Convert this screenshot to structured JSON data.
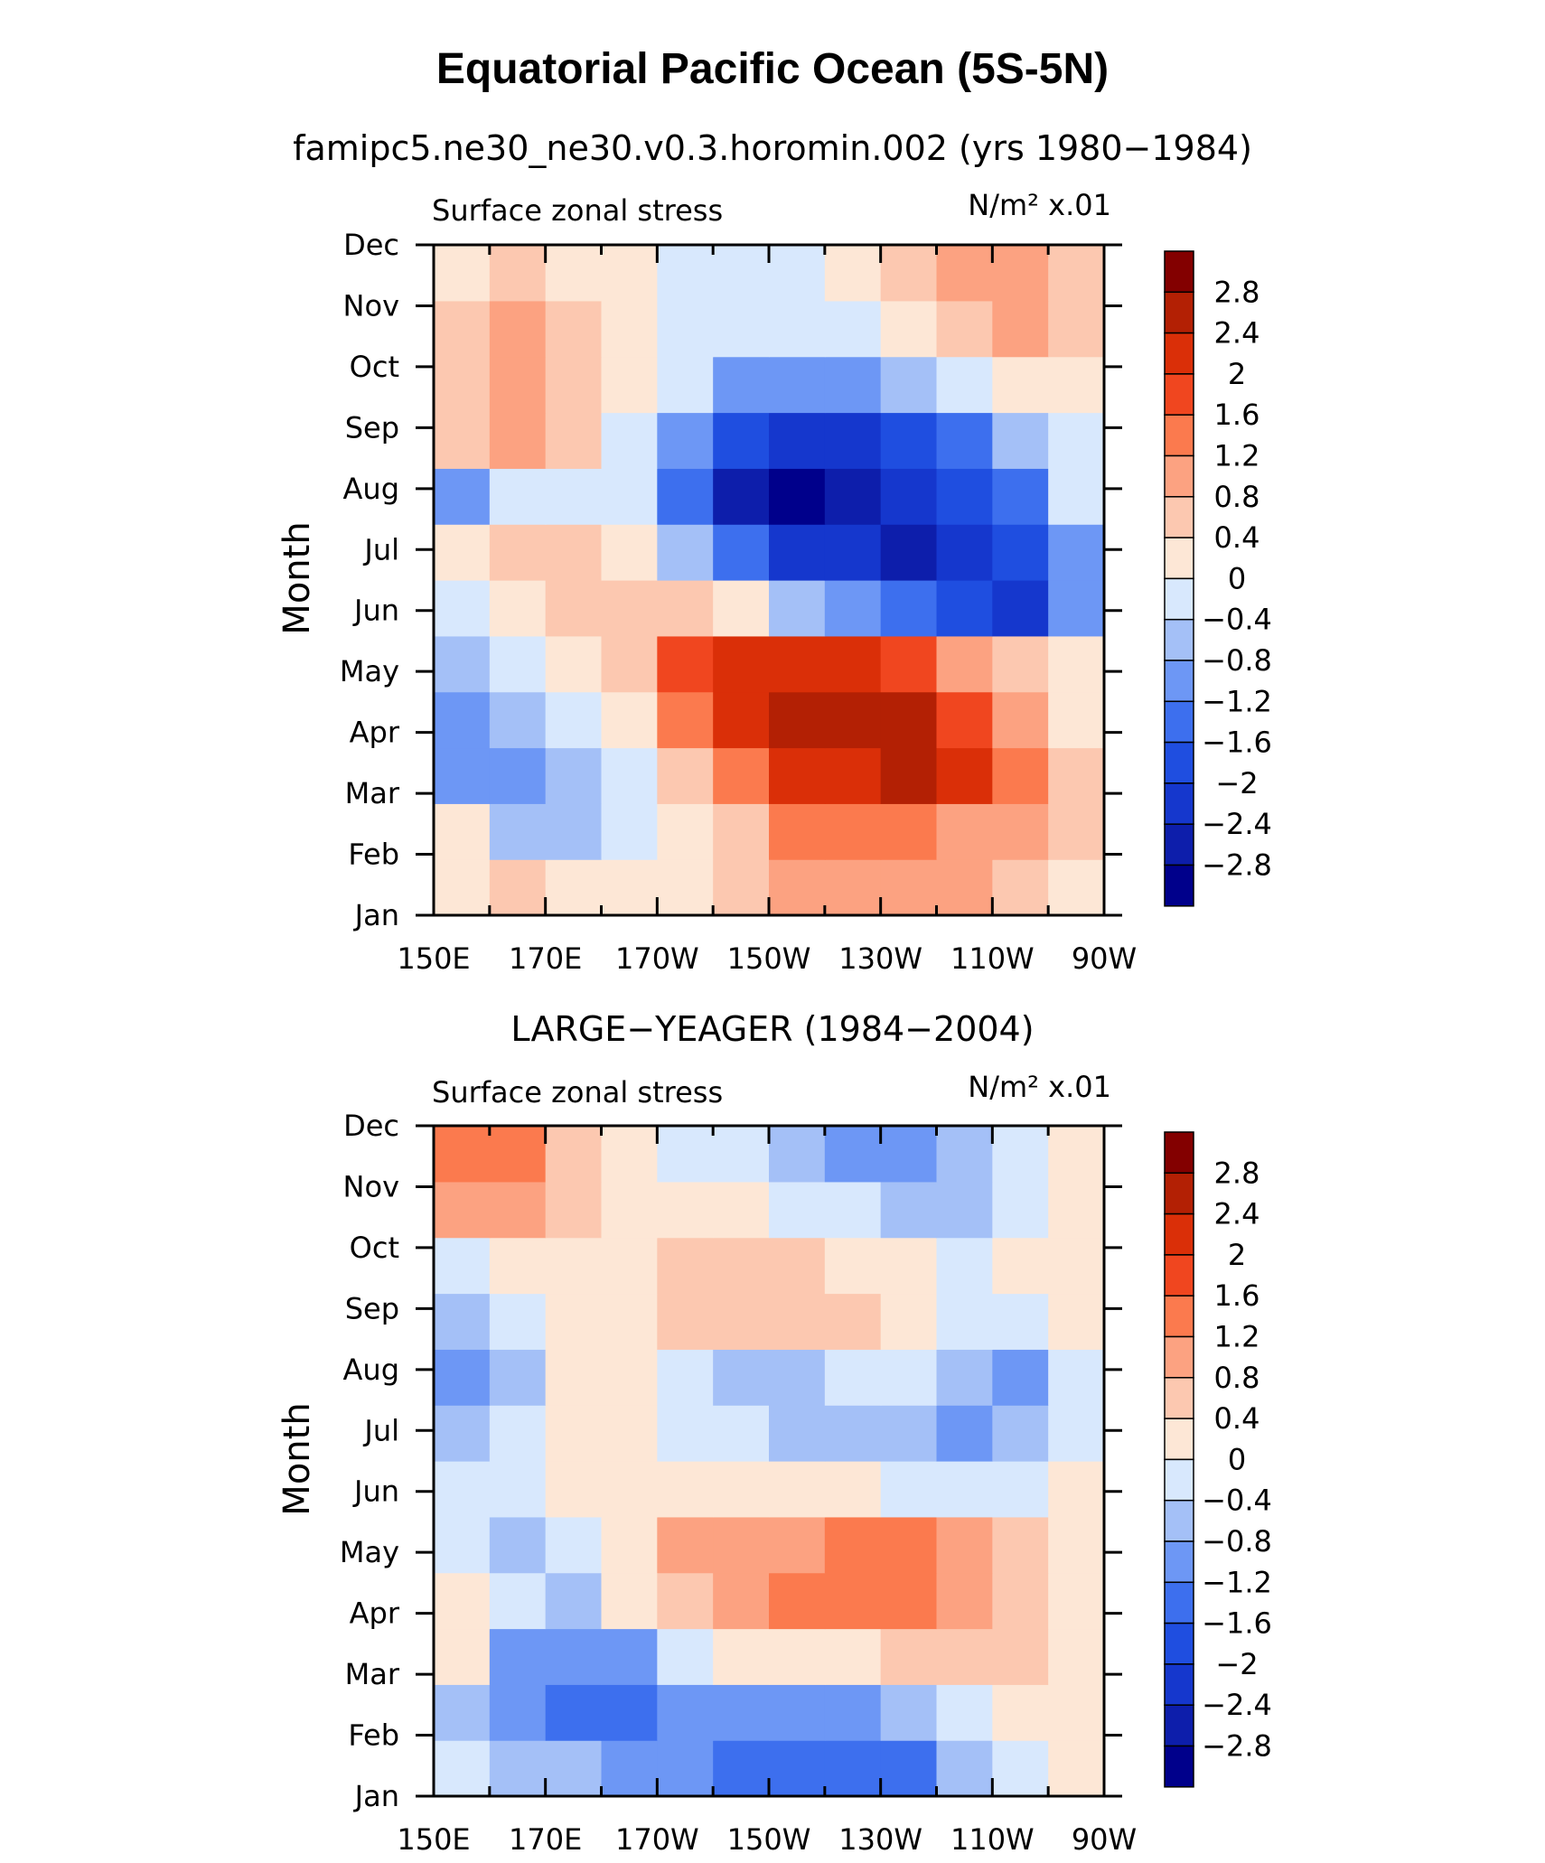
{
  "figure_title": "Equatorial Pacific Ocean (5S-5N)",
  "chart_data": [
    {
      "type": "heatmap",
      "title": "famipc5.ne30_ne30.v0.3.horomin.002 (yrs 1980−1984)",
      "left_label": "Surface zonal stress",
      "units": "N/m² x.01",
      "xlabel": "",
      "ylabel": "Month",
      "x_ticks": [
        "150E",
        "170E",
        "170W",
        "150W",
        "130W",
        "110W",
        "90W"
      ],
      "y_ticks": [
        "Jan",
        "Feb",
        "Mar",
        "Apr",
        "May",
        "Jun",
        "Jul",
        "Aug",
        "Sep",
        "Oct",
        "Nov",
        "Dec"
      ],
      "colorbar_levels": [
        "2.8",
        "2.4",
        "2",
        "1.6",
        "1.2",
        "0.8",
        "0.4",
        "0",
        "−0.4",
        "−0.8",
        "−1.2",
        "−1.6",
        "−2",
        "−2.4",
        "−2.8"
      ],
      "z": [
        [
          0.2,
          0.4,
          0.2,
          0.1,
          0.1,
          0.4,
          0.8,
          1.0,
          0.9,
          0.8,
          0.7,
          0.3
        ],
        [
          0.0,
          -0.5,
          -0.6,
          -0.3,
          0.3,
          0.7,
          1.3,
          1.4,
          1.3,
          1.1,
          0.8,
          0.4
        ],
        [
          -1.2,
          -0.9,
          -0.6,
          -0.1,
          0.6,
          1.5,
          2.1,
          2.4,
          2.7,
          2.3,
          1.3,
          0.6
        ],
        [
          -1.0,
          -0.7,
          -0.4,
          0.2,
          1.2,
          2.1,
          2.5,
          2.6,
          2.5,
          1.9,
          0.9,
          0.3
        ],
        [
          -0.6,
          -0.4,
          0.2,
          0.6,
          1.6,
          2.2,
          2.3,
          2.1,
          1.6,
          1.0,
          0.4,
          0.0
        ],
        [
          -0.2,
          0.1,
          0.4,
          0.5,
          0.4,
          0.0,
          -0.6,
          -1.2,
          -1.6,
          -1.9,
          -2.1,
          -1.2
        ],
        [
          0.1,
          0.4,
          0.5,
          0.2,
          -0.5,
          -1.4,
          -2.1,
          -2.4,
          -2.5,
          -2.4,
          -2.0,
          -0.9
        ],
        [
          -0.9,
          -0.2,
          -0.1,
          -0.4,
          -1.6,
          -2.5,
          -2.9,
          -2.6,
          -2.4,
          -2.0,
          -1.3,
          -0.4
        ],
        [
          0.6,
          0.9,
          0.5,
          -0.3,
          -1.2,
          -2.0,
          -2.2,
          -2.1,
          -2.0,
          -1.4,
          -0.7,
          -0.1
        ],
        [
          0.6,
          0.8,
          0.6,
          0.2,
          -0.3,
          -0.9,
          -1.2,
          -1.1,
          -0.8,
          -0.4,
          0.0,
          0.1
        ],
        [
          0.6,
          0.8,
          0.7,
          0.2,
          -0.1,
          -0.2,
          -0.4,
          -0.2,
          0.2,
          0.6,
          0.9,
          0.7
        ],
        [
          0.3,
          0.4,
          0.3,
          0.0,
          -0.3,
          -0.4,
          -0.2,
          0.0,
          0.6,
          0.8,
          1.0,
          0.5
        ]
      ]
    },
    {
      "type": "heatmap",
      "title": "LARGE−YEAGER (1984−2004)",
      "left_label": "Surface zonal stress",
      "units": "N/m² x.01",
      "xlabel": "",
      "ylabel": "Month",
      "x_ticks": [
        "150E",
        "170E",
        "170W",
        "150W",
        "130W",
        "110W",
        "90W"
      ],
      "y_ticks": [
        "Jan",
        "Feb",
        "Mar",
        "Apr",
        "May",
        "Jun",
        "Jul",
        "Aug",
        "Sep",
        "Oct",
        "Nov",
        "Dec"
      ],
      "colorbar_levels": [
        "2.8",
        "2.4",
        "2",
        "1.6",
        "1.2",
        "0.8",
        "0.4",
        "0",
        "−0.4",
        "−0.8",
        "−1.2",
        "−1.6",
        "−2",
        "−2.4",
        "−2.8"
      ],
      "z": [
        [
          -0.3,
          -0.6,
          -0.8,
          -0.9,
          -1.1,
          -1.3,
          -1.5,
          -1.6,
          -1.3,
          -0.8,
          -0.3,
          0.1
        ],
        [
          -0.5,
          -1.1,
          -1.4,
          -1.3,
          -1.1,
          -1.0,
          -1.0,
          -0.9,
          -0.6,
          -0.3,
          0.0,
          0.2
        ],
        [
          0.2,
          -0.9,
          -1.2,
          -0.9,
          -0.3,
          0.0,
          0.1,
          0.2,
          0.4,
          0.5,
          0.4,
          0.2
        ],
        [
          0.2,
          -0.4,
          -0.6,
          0.0,
          0.5,
          0.9,
          1.3,
          1.4,
          1.3,
          1.0,
          0.6,
          0.2
        ],
        [
          -0.2,
          -0.5,
          -0.3,
          0.3,
          0.8,
          1.0,
          1.1,
          1.3,
          1.4,
          1.0,
          0.5,
          0.1
        ],
        [
          -0.3,
          -0.2,
          0.1,
          0.3,
          0.3,
          0.2,
          0.1,
          0.0,
          -0.1,
          -0.3,
          -0.2,
          0.0
        ],
        [
          -0.6,
          -0.3,
          0.1,
          0.1,
          -0.2,
          -0.3,
          -0.6,
          -0.6,
          -0.5,
          -1.0,
          -0.8,
          -0.2
        ],
        [
          -1.2,
          -0.5,
          0.1,
          0.0,
          -0.2,
          -0.5,
          -0.5,
          -0.4,
          -0.3,
          -0.8,
          -0.9,
          -0.2
        ],
        [
          -0.6,
          -0.1,
          0.2,
          0.2,
          0.4,
          0.5,
          0.6,
          0.6,
          0.3,
          -0.1,
          -0.2,
          0.1
        ],
        [
          -0.2,
          0.2,
          0.2,
          0.3,
          0.4,
          0.5,
          0.6,
          0.3,
          0.1,
          -0.1,
          0.0,
          0.2
        ],
        [
          1.0,
          1.0,
          0.6,
          0.3,
          0.2,
          0.0,
          -0.1,
          -0.3,
          -0.5,
          -0.5,
          -0.3,
          0.3
        ],
        [
          1.5,
          1.3,
          0.7,
          0.2,
          -0.2,
          -0.4,
          -0.6,
          -1.0,
          -1.2,
          -0.8,
          -0.4,
          0.2
        ]
      ]
    }
  ],
  "palette": [
    "#00008b",
    "#0d1eab",
    "#1537cd",
    "#1f4ee0",
    "#3d6fee",
    "#6d97f5",
    "#a4c0f7",
    "#d8e8fd",
    "#fde7d6",
    "#fcc8b0",
    "#fca281",
    "#fb7a4e",
    "#f0461f",
    "#da2f08",
    "#b32004",
    "#830000"
  ]
}
